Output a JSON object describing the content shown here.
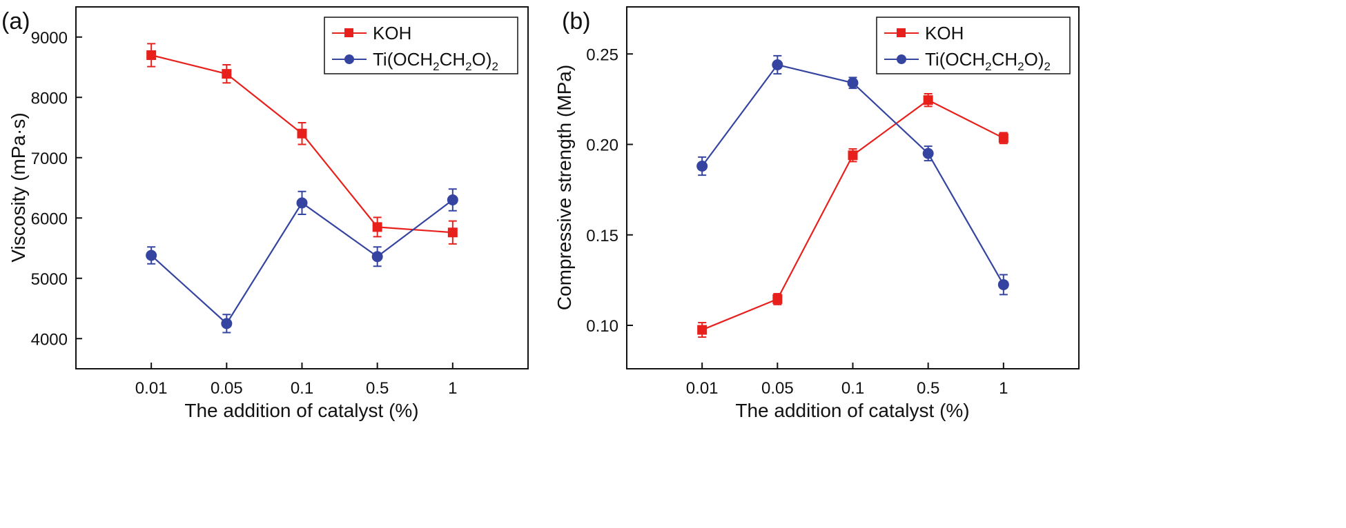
{
  "chart_data": [
    {
      "type": "line",
      "panel_label": "(a)",
      "xlabel": "The addition of catalyst (%)",
      "ylabel": "Viscosity (mPa·s)",
      "categories": [
        "0.01",
        "0.05",
        "0.1",
        "0.5",
        "1"
      ],
      "ylim": [
        3500,
        9500
      ],
      "yticks": [
        4000,
        5000,
        6000,
        7000,
        8000,
        9000
      ],
      "legend_position": "top-right",
      "series": [
        {
          "name": "KOH",
          "marker": "square",
          "color": "#e8201c",
          "values": [
            8700,
            8390,
            7400,
            5850,
            5760
          ],
          "errors": [
            190,
            150,
            180,
            160,
            190
          ]
        },
        {
          "name": "Ti(OCH2CH2O)2",
          "marker": "circle",
          "color": "#3444a0",
          "values": [
            5380,
            4250,
            6250,
            5360,
            6300
          ],
          "errors": [
            140,
            150,
            190,
            160,
            180
          ]
        }
      ]
    },
    {
      "type": "line",
      "panel_label": "(b)",
      "xlabel": "The addition of catalyst (%)",
      "ylabel": "Compressive strength (MPa)",
      "categories": [
        "0.01",
        "0.05",
        "0.1",
        "0.5",
        "1"
      ],
      "ylim": [
        0.076,
        0.276
      ],
      "yticks": [
        0.1,
        0.15,
        0.2,
        0.25
      ],
      "ytick_labels": [
        "0.10",
        "0.15",
        "0.20",
        "0.25"
      ],
      "legend_position": "top-right",
      "series": [
        {
          "name": "KOH",
          "marker": "square",
          "color": "#e8201c",
          "values": [
            0.0975,
            0.1145,
            0.194,
            0.2245,
            0.2035
          ],
          "errors": [
            0.004,
            0.003,
            0.0035,
            0.0035,
            0.003
          ]
        },
        {
          "name": "Ti(OCH2CH2O)2",
          "marker": "circle",
          "color": "#3444a0",
          "values": [
            0.188,
            0.244,
            0.234,
            0.195,
            0.1225
          ],
          "errors": [
            0.005,
            0.005,
            0.003,
            0.004,
            0.0055
          ]
        }
      ]
    }
  ]
}
